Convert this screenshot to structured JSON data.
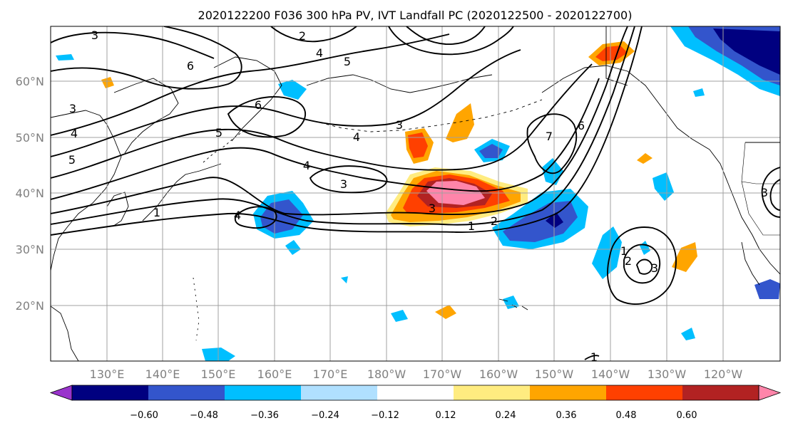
{
  "title": "2020122200 F036 300 hPa PV, IVT Landfall PC (2020122500 - 2020122700)",
  "lat_labels": [
    "60°N",
    "50°N",
    "40°N",
    "30°N",
    "20°N"
  ],
  "lon_labels": [
    "130°E",
    "140°E",
    "150°E",
    "160°E",
    "170°E",
    "180°W",
    "170°W",
    "160°W",
    "150°W",
    "140°W",
    "130°W",
    "120°W"
  ],
  "colorbar": {
    "ticks": [
      "−0.60",
      "−0.48",
      "−0.36",
      "−0.24",
      "−0.12",
      "0.12",
      "0.24",
      "0.36",
      "0.48",
      "0.60"
    ],
    "colors": [
      "#9933cc",
      "#000080",
      "#3355cc",
      "#00bfff",
      "#b0e0ff",
      "#ffffff",
      "#ffec80",
      "#ffa500",
      "#ff4000",
      "#b22222",
      "#ff85aa"
    ]
  },
  "contour_labels": [
    "3",
    "2",
    "4",
    "5",
    "6",
    "3",
    "4",
    "5",
    "6",
    "4",
    "3",
    "4",
    "3",
    "1",
    "2",
    "1",
    "7",
    "6",
    "3",
    "1",
    "2",
    "3",
    "3",
    "5",
    "4",
    "1"
  ]
}
